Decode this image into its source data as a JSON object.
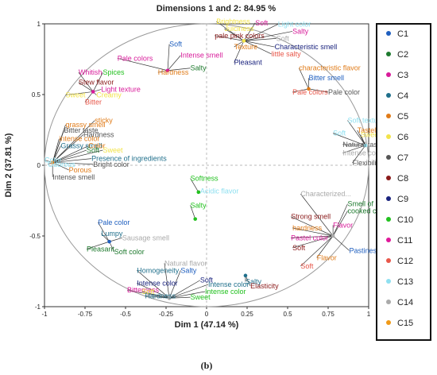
{
  "chart_data": {
    "type": "scatter",
    "title": "Dimensions 1 and 2: 84.95 %",
    "xlabel": "Dim 1 (47.14 %)",
    "ylabel": "Dim 2 (37.81 %)",
    "caption": "(b)",
    "xlim": [
      -1,
      1
    ],
    "ylim": [
      -1,
      1
    ],
    "x_ticks": [
      "-1",
      "-0.75",
      "-0.5",
      "-0.25",
      "0",
      "0.25",
      "0.5",
      "0.75",
      "1"
    ],
    "y_ticks": [
      "-1",
      "-0.5",
      "0",
      "0.5",
      "1"
    ],
    "circle": true,
    "legend": {
      "placement": "right",
      "entries": [
        {
          "name": "C1",
          "color": "#1f5fbf"
        },
        {
          "name": "C2",
          "color": "#1e7a2e"
        },
        {
          "name": "C3",
          "color": "#d81b9a"
        },
        {
          "name": "C4",
          "color": "#1f6f8b"
        },
        {
          "name": "C5",
          "color": "#e07b18"
        },
        {
          "name": "C6",
          "color": "#f2e34a"
        },
        {
          "name": "C7",
          "color": "#555555"
        },
        {
          "name": "C8",
          "color": "#8b1a1a"
        },
        {
          "name": "C9",
          "color": "#1a237e"
        },
        {
          "name": "C10",
          "color": "#22c11f"
        },
        {
          "name": "C11",
          "color": "#e0199a"
        },
        {
          "name": "C12",
          "color": "#e8574a"
        },
        {
          "name": "C13",
          "color": "#8fe0f0"
        },
        {
          "name": "C14",
          "color": "#aaaaaa"
        },
        {
          "name": "C15",
          "color": "#f09a18"
        }
      ]
    },
    "clusters": [
      {
        "x": -0.24,
        "y": 0.67,
        "labels": [
          {
            "text": "Pale colors",
            "x": -0.55,
            "y": 0.74,
            "color": "#d81b9a",
            "size": 11
          },
          {
            "text": "Soft",
            "x": -0.23,
            "y": 0.84,
            "color": "#1f5fbf"
          },
          {
            "text": "Intense smell",
            "x": -0.16,
            "y": 0.76,
            "color": "#d81b9a"
          },
          {
            "text": "Salty",
            "x": -0.1,
            "y": 0.67,
            "color": "#1e7a2e"
          },
          {
            "text": "Hardness",
            "x": -0.3,
            "y": 0.64,
            "color": "#e07b18"
          }
        ]
      },
      {
        "x": -0.7,
        "y": 0.52,
        "labels": [
          {
            "text": "Whitish",
            "x": -0.79,
            "y": 0.64,
            "color": "#d81b9a"
          },
          {
            "text": "Spices",
            "x": -0.64,
            "y": 0.64,
            "color": "#22c11f"
          },
          {
            "text": "Stew flavor",
            "x": -0.79,
            "y": 0.57,
            "color": "#8b1a1a"
          },
          {
            "text": "Light texture",
            "x": -0.65,
            "y": 0.52,
            "color": "#d81b9a"
          },
          {
            "text": "Sweet",
            "x": -0.87,
            "y": 0.48,
            "color": "#f2e34a"
          },
          {
            "text": "Creamy",
            "x": -0.68,
            "y": 0.48,
            "color": "#f2e34a"
          },
          {
            "text": "Bitter",
            "x": -0.75,
            "y": 0.43,
            "color": "#e8574a"
          }
        ]
      },
      {
        "x": 0.23,
        "y": 0.88,
        "labels": [
          {
            "text": "Brightness",
            "x": 0.06,
            "y": 1.0,
            "color": "#f2e34a"
          },
          {
            "text": "Soft",
            "x": 0.3,
            "y": 0.99,
            "color": "#d81b9a"
          },
          {
            "text": "Light color",
            "x": 0.44,
            "y": 0.98,
            "color": "#8fe0f0"
          },
          {
            "text": "Juiciness",
            "x": 0.11,
            "y": 0.95,
            "color": "#f2e34a"
          },
          {
            "text": "Salty",
            "x": 0.53,
            "y": 0.93,
            "color": "#d81b9a",
            "size": 10
          },
          {
            "text": "pale pink colors",
            "x": 0.05,
            "y": 0.9,
            "color": "#8b1a1a"
          },
          {
            "text": "Soft",
            "x": 0.43,
            "y": 0.88,
            "color": "#aaaaaa"
          },
          {
            "text": "Texture",
            "x": 0.17,
            "y": 0.82,
            "color": "#e07b18"
          },
          {
            "text": "Characteristic smell",
            "x": 0.42,
            "y": 0.82,
            "color": "#1a237e"
          },
          {
            "text": "little salty",
            "x": 0.4,
            "y": 0.77,
            "color": "#e8574a"
          },
          {
            "text": "Pleasant",
            "x": 0.17,
            "y": 0.71,
            "color": "#1a237e"
          }
        ]
      },
      {
        "x": 0.63,
        "y": 0.54,
        "labels": [
          {
            "text": "characteristic flavor",
            "x": 0.57,
            "y": 0.67,
            "color": "#e07b18"
          },
          {
            "text": "Bitter smell",
            "x": 0.63,
            "y": 0.6,
            "color": "#1f5fbf"
          },
          {
            "text": "Pale color",
            "x": 0.75,
            "y": 0.5,
            "color": "#555555"
          },
          {
            "text": "Pale colors",
            "x": 0.53,
            "y": 0.5,
            "color": "#e8574a"
          }
        ]
      },
      {
        "x": 0.98,
        "y": 0.14,
        "labels": [
          {
            "text": "Soft texture",
            "x": 0.87,
            "y": 0.3,
            "color": "#8fe0f0"
          },
          {
            "text": "Tasteless",
            "x": 0.93,
            "y": 0.23,
            "color": "#e07b18"
          },
          {
            "text": "Sweet",
            "x": 0.95,
            "y": 0.2,
            "color": "#f2e34a"
          },
          {
            "text": "Soft",
            "x": 0.78,
            "y": 0.21,
            "color": "#8fe0f0"
          },
          {
            "text": "Natural taste",
            "x": 0.84,
            "y": 0.13,
            "color": "#555555"
          },
          {
            "text": "Intense color",
            "x": 0.84,
            "y": 0.07,
            "color": "#aaaaaa"
          },
          {
            "text": "Flexibility",
            "x": 0.9,
            "y": 0.0,
            "color": "#555555"
          }
        ]
      },
      {
        "x": -0.95,
        "y": 0.02,
        "labels": [
          {
            "text": "sticky",
            "x": -0.69,
            "y": 0.3,
            "color": "#e07b18"
          },
          {
            "text": "grassy smell",
            "x": -0.87,
            "y": 0.27,
            "color": "#e07b18"
          },
          {
            "text": "Bitter taste",
            "x": -0.88,
            "y": 0.23,
            "color": "#555555"
          },
          {
            "text": "Hardness",
            "x": -0.76,
            "y": 0.2,
            "color": "#555555"
          },
          {
            "text": "intense color",
            "x": -0.91,
            "y": 0.17,
            "color": "#e07b18"
          },
          {
            "text": "Grassy smell",
            "x": -0.9,
            "y": 0.12,
            "color": "#1f6f8b"
          },
          {
            "text": "Color",
            "x": -0.73,
            "y": 0.12,
            "color": "#e07b18"
          },
          {
            "text": "Soft",
            "x": -0.74,
            "y": 0.09,
            "color": "#1e7a2e"
          },
          {
            "text": "Sweet",
            "x": -0.64,
            "y": 0.09,
            "color": "#f2e34a"
          },
          {
            "text": "Presence of ingredients",
            "x": -0.71,
            "y": 0.03,
            "color": "#1f6f8b"
          },
          {
            "text": "Color",
            "x": -1.0,
            "y": 0.02,
            "color": "#8fe0f0"
          },
          {
            "text": "Odorous",
            "x": -0.98,
            "y": -0.01,
            "color": "#8fe0f0"
          },
          {
            "text": "Bright color",
            "x": -0.7,
            "y": -0.01,
            "color": "#555555"
          },
          {
            "text": "Porous",
            "x": -0.85,
            "y": -0.05,
            "color": "#e07b18"
          },
          {
            "text": "Intense smell",
            "x": -0.95,
            "y": -0.1,
            "color": "#555555"
          }
        ]
      },
      {
        "x": -0.05,
        "y": -0.19,
        "labels": [
          {
            "text": "Softness",
            "x": -0.1,
            "y": -0.11,
            "color": "#22c11f"
          },
          {
            "text": "Acidic flavor",
            "x": -0.04,
            "y": -0.2,
            "color": "#8fe0f0"
          }
        ]
      },
      {
        "x": -0.07,
        "y": -0.38,
        "labels": [
          {
            "text": "Salty",
            "x": -0.1,
            "y": -0.3,
            "color": "#22c11f"
          }
        ]
      },
      {
        "x": -0.6,
        "y": -0.54,
        "labels": [
          {
            "text": "Pale color",
            "x": -0.67,
            "y": -0.42,
            "color": "#1f5fbf"
          },
          {
            "text": "Lumpy",
            "x": -0.65,
            "y": -0.5,
            "color": "#1f6f8b"
          },
          {
            "text": "Sausage smell",
            "x": -0.52,
            "y": -0.53,
            "color": "#aaaaaa"
          },
          {
            "text": "Pleasant",
            "x": -0.74,
            "y": -0.61,
            "color": "#1e7a2e"
          },
          {
            "text": "Soft color",
            "x": -0.57,
            "y": -0.63,
            "color": "#1e7a2e"
          }
        ]
      },
      {
        "x": -0.23,
        "y": -0.94,
        "labels": [
          {
            "text": "Natural flavor",
            "x": -0.26,
            "y": -0.71,
            "color": "#aaaaaa"
          },
          {
            "text": "Homogeneity",
            "x": -0.43,
            "y": -0.76,
            "color": "#1f6f8b"
          },
          {
            "text": "Salty",
            "x": -0.16,
            "y": -0.76,
            "color": "#1f5fbf"
          },
          {
            "text": "Soft",
            "x": -0.04,
            "y": -0.83,
            "color": "#1a237e"
          },
          {
            "text": "Intense color",
            "x": -0.43,
            "y": -0.85,
            "color": "#1a237e"
          },
          {
            "text": "Intense color",
            "x": 0.01,
            "y": -0.86,
            "color": "#1f6f8b"
          },
          {
            "text": "Bitterness",
            "x": -0.49,
            "y": -0.9,
            "color": "#d81b9a",
            "size": 10
          },
          {
            "text": "Soft",
            "x": -0.4,
            "y": -0.91,
            "color": "#f2e34a"
          },
          {
            "text": "Intense color",
            "x": -0.01,
            "y": -0.91,
            "color": "#22c11f"
          },
          {
            "text": "Hardness",
            "x": -0.38,
            "y": -0.94,
            "color": "#1f6f8b"
          },
          {
            "text": "Sweet",
            "x": -0.1,
            "y": -0.95,
            "color": "#22c11f"
          }
        ]
      },
      {
        "x": 0.24,
        "y": -0.78,
        "labels": [
          {
            "text": "Salty",
            "x": 0.24,
            "y": -0.84,
            "color": "#1f6f8b"
          },
          {
            "text": "Elasticity",
            "x": 0.27,
            "y": -0.87,
            "color": "#8b1a1a"
          }
        ]
      },
      {
        "x": 0.78,
        "y": -0.5,
        "labels": [
          {
            "text": "Characterized...",
            "x": 0.58,
            "y": -0.22,
            "color": "#aaaaaa"
          },
          {
            "text": "Smell of",
            "x": 0.87,
            "y": -0.29,
            "color": "#1e7a2e"
          },
          {
            "text": "cooked corn",
            "x": 0.87,
            "y": -0.34,
            "color": "#1e7a2e"
          },
          {
            "text": "Strong smell",
            "x": 0.52,
            "y": -0.38,
            "color": "#8b1a1a"
          },
          {
            "text": "hardness",
            "x": 0.53,
            "y": -0.46,
            "color": "#e07b18"
          },
          {
            "text": "Flavor",
            "x": 0.78,
            "y": -0.44,
            "color": "#d81b9a"
          },
          {
            "text": "Pastel color",
            "x": 0.52,
            "y": -0.53,
            "color": "#d81b9a"
          },
          {
            "text": "Soft",
            "x": 0.53,
            "y": -0.6,
            "color": "#8b1a1a"
          },
          {
            "text": "Pastiness",
            "x": 0.88,
            "y": -0.62,
            "color": "#1f5fbf"
          },
          {
            "text": "Flavor",
            "x": 0.68,
            "y": -0.67,
            "color": "#e07b18"
          },
          {
            "text": "Soft",
            "x": 0.58,
            "y": -0.73,
            "color": "#e8574a"
          }
        ]
      }
    ]
  }
}
